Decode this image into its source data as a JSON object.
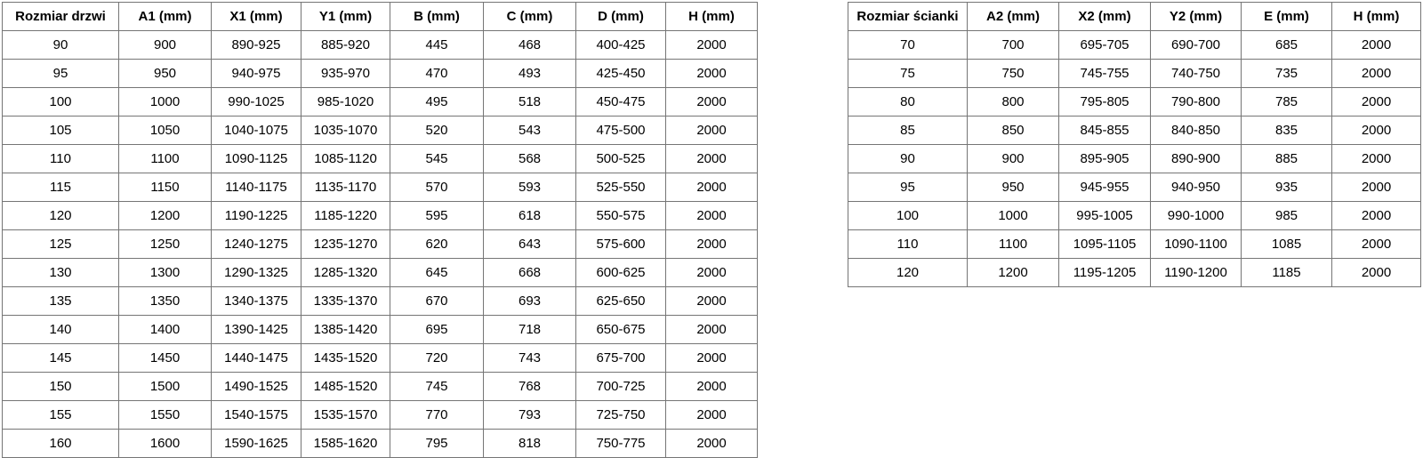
{
  "colors": {
    "background": "#ffffff",
    "grid_border": "#757575",
    "outer_border": "#4d4d4d",
    "text": "#000000"
  },
  "door_table": {
    "title": "Rozmiar drzwi",
    "headers": [
      "Rozmiar drzwi",
      "A1 (mm)",
      "X1 (mm)",
      "Y1 (mm)",
      "B (mm)",
      "C (mm)",
      "D (mm)",
      "H (mm)"
    ],
    "rows": [
      [
        "90",
        "900",
        "890-925",
        "885-920",
        "445",
        "468",
        "400-425",
        "2000"
      ],
      [
        "95",
        "950",
        "940-975",
        "935-970",
        "470",
        "493",
        "425-450",
        "2000"
      ],
      [
        "100",
        "1000",
        "990-1025",
        "985-1020",
        "495",
        "518",
        "450-475",
        "2000"
      ],
      [
        "105",
        "1050",
        "1040-1075",
        "1035-1070",
        "520",
        "543",
        "475-500",
        "2000"
      ],
      [
        "110",
        "1100",
        "1090-1125",
        "1085-1120",
        "545",
        "568",
        "500-525",
        "2000"
      ],
      [
        "115",
        "1150",
        "1140-1175",
        "1135-1170",
        "570",
        "593",
        "525-550",
        "2000"
      ],
      [
        "120",
        "1200",
        "1190-1225",
        "1185-1220",
        "595",
        "618",
        "550-575",
        "2000"
      ],
      [
        "125",
        "1250",
        "1240-1275",
        "1235-1270",
        "620",
        "643",
        "575-600",
        "2000"
      ],
      [
        "130",
        "1300",
        "1290-1325",
        "1285-1320",
        "645",
        "668",
        "600-625",
        "2000"
      ],
      [
        "135",
        "1350",
        "1340-1375",
        "1335-1370",
        "670",
        "693",
        "625-650",
        "2000"
      ],
      [
        "140",
        "1400",
        "1390-1425",
        "1385-1420",
        "695",
        "718",
        "650-675",
        "2000"
      ],
      [
        "145",
        "1450",
        "1440-1475",
        "1435-1520",
        "720",
        "743",
        "675-700",
        "2000"
      ],
      [
        "150",
        "1500",
        "1490-1525",
        "1485-1520",
        "745",
        "768",
        "700-725",
        "2000"
      ],
      [
        "155",
        "1550",
        "1540-1575",
        "1535-1570",
        "770",
        "793",
        "725-750",
        "2000"
      ],
      [
        "160",
        "1600",
        "1590-1625",
        "1585-1620",
        "795",
        "818",
        "750-775",
        "2000"
      ]
    ]
  },
  "wall_table": {
    "title": "Rozmiar ścianki",
    "headers": [
      "Rozmiar ścianki",
      "A2 (mm)",
      "X2 (mm)",
      "Y2 (mm)",
      "E (mm)",
      "H (mm)"
    ],
    "rows": [
      [
        "70",
        "700",
        "695-705",
        "690-700",
        "685",
        "2000"
      ],
      [
        "75",
        "750",
        "745-755",
        "740-750",
        "735",
        "2000"
      ],
      [
        "80",
        "800",
        "795-805",
        "790-800",
        "785",
        "2000"
      ],
      [
        "85",
        "850",
        "845-855",
        "840-850",
        "835",
        "2000"
      ],
      [
        "90",
        "900",
        "895-905",
        "890-900",
        "885",
        "2000"
      ],
      [
        "95",
        "950",
        "945-955",
        "940-950",
        "935",
        "2000"
      ],
      [
        "100",
        "1000",
        "995-1005",
        "990-1000",
        "985",
        "2000"
      ],
      [
        "110",
        "1100",
        "1095-1105",
        "1090-1100",
        "1085",
        "2000"
      ],
      [
        "120",
        "1200",
        "1195-1205",
        "1190-1200",
        "1185",
        "2000"
      ]
    ]
  }
}
